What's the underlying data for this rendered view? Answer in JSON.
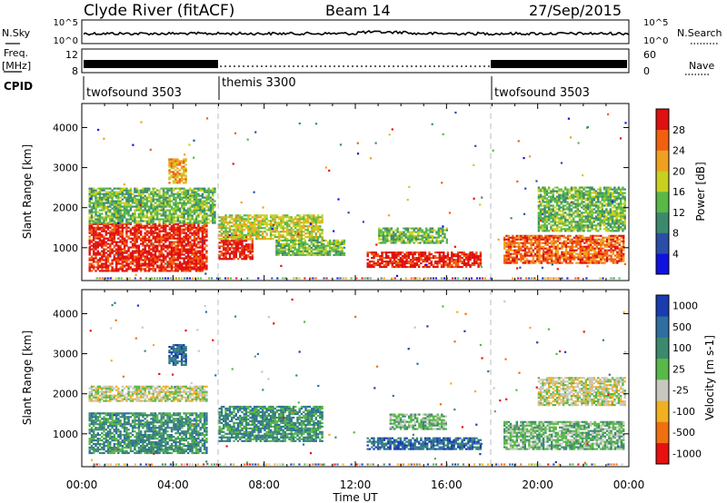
{
  "header": {
    "station": "Clyde River (fitACF)",
    "beam": "Beam 14",
    "date": "27/Sep/2015"
  },
  "noise_panel": {
    "left_label": "N.Sky",
    "left_ticks": [
      "10^5",
      "10^0"
    ],
    "right_ticks": [
      "10^5",
      "10^0"
    ],
    "right_label": "N.Search"
  },
  "freq_panel": {
    "left_label_line1": "Freq.",
    "left_label_line2": "[MHz]",
    "left_ticks": [
      "12",
      "8"
    ],
    "right_ticks": [
      "60",
      "0"
    ],
    "right_label": "Nave"
  },
  "cpid": {
    "label": "CPID",
    "segments": [
      {
        "name": "twofsound 3503",
        "start_h": 0,
        "end_h": 6
      },
      {
        "name": "themis 3300",
        "start_h": 6,
        "end_h": 18
      },
      {
        "name": "twofsound 3503",
        "start_h": 18,
        "end_h": 24
      }
    ]
  },
  "x_axis": {
    "label": "Time UT",
    "ticks": [
      "00:00",
      "04:00",
      "08:00",
      "12:00",
      "16:00",
      "20:00",
      "00:00"
    ]
  },
  "chart_data": [
    {
      "type": "heatmap",
      "title": "",
      "xlabel": "Time UT",
      "ylabel": "Slant Range [km]",
      "xlim": [
        0,
        24
      ],
      "ylim": [
        180,
        4600
      ],
      "yticks": [
        "1000",
        "2000",
        "3000",
        "4000"
      ],
      "colorbar": {
        "label": "Power [dB]",
        "ticks": [
          "4",
          "8",
          "12",
          "16",
          "20",
          "24",
          "28"
        ],
        "colors": [
          "#1010e0",
          "#2a4ea8",
          "#3c8a6e",
          "#58b848",
          "#c8d020",
          "#f0a020",
          "#f06010",
          "#e01010"
        ]
      },
      "regions": [
        {
          "t0": 0.3,
          "t1": 5.5,
          "r0": 400,
          "r1": 1600,
          "level": 7
        },
        {
          "t0": 0.3,
          "t1": 5.8,
          "r0": 1600,
          "r1": 2500,
          "level": 3
        },
        {
          "t0": 3.8,
          "t1": 4.6,
          "r0": 2600,
          "r1": 3200,
          "level": 5
        },
        {
          "t0": 6.0,
          "t1": 7.5,
          "r0": 700,
          "r1": 1300,
          "level": 7
        },
        {
          "t0": 6.0,
          "t1": 10.5,
          "r0": 1200,
          "r1": 1800,
          "level": 4
        },
        {
          "t0": 8.5,
          "t1": 11.5,
          "r0": 800,
          "r1": 1200,
          "level": 3
        },
        {
          "t0": 12.5,
          "t1": 17.5,
          "r0": 500,
          "r1": 900,
          "level": 7
        },
        {
          "t0": 13.0,
          "t1": 16.0,
          "r0": 1100,
          "r1": 1500,
          "level": 3
        },
        {
          "t0": 18.5,
          "t1": 23.8,
          "r0": 600,
          "r1": 1300,
          "level": 6
        },
        {
          "t0": 20.0,
          "t1": 23.8,
          "r0": 1400,
          "r1": 2500,
          "level": 3
        }
      ]
    },
    {
      "type": "heatmap",
      "title": "",
      "xlabel": "Time UT",
      "ylabel": "Slant Range [km]",
      "xlim": [
        0,
        24
      ],
      "ylim": [
        180,
        4600
      ],
      "yticks": [
        "1000",
        "2000",
        "3000",
        "4000"
      ],
      "colorbar": {
        "label": "Velocity [m s-1]",
        "ticks": [
          "1000",
          "500",
          "100",
          "25",
          "-25",
          "-100",
          "-500",
          "-1000"
        ],
        "colors": [
          "#1a3cb0",
          "#2e6ea0",
          "#3c8a6e",
          "#58b848",
          "#c8c8c0",
          "#f0b020",
          "#f07010",
          "#e81010"
        ]
      },
      "regions": [
        {
          "t0": 0.3,
          "t1": 5.5,
          "r0": 500,
          "r1": 1500,
          "level": 2
        },
        {
          "t0": 0.3,
          "t1": 5.5,
          "r0": 1800,
          "r1": 2200,
          "level": 4
        },
        {
          "t0": 3.8,
          "t1": 4.6,
          "r0": 2700,
          "r1": 3200,
          "level": 1
        },
        {
          "t0": 6.0,
          "t1": 10.5,
          "r0": 800,
          "r1": 1700,
          "level": 2
        },
        {
          "t0": 12.5,
          "t1": 17.5,
          "r0": 600,
          "r1": 900,
          "level": 1
        },
        {
          "t0": 13.5,
          "t1": 16.0,
          "r0": 1100,
          "r1": 1500,
          "level": 3
        },
        {
          "t0": 18.5,
          "t1": 23.8,
          "r0": 600,
          "r1": 1300,
          "level": 3
        },
        {
          "t0": 20.0,
          "t1": 23.8,
          "r0": 1700,
          "r1": 2400,
          "level": 4
        }
      ]
    }
  ]
}
